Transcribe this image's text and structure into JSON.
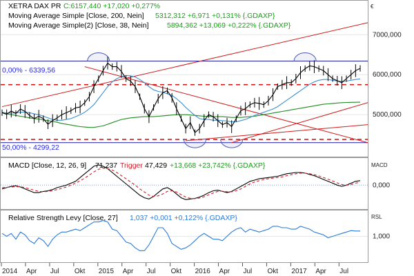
{
  "chart_data": {
    "type": "line",
    "x_axis": {
      "labels": [
        "2014",
        "Apr",
        "Jul",
        "Okt",
        "2015",
        "Apr",
        "Jul",
        "Okt",
        "2016",
        "Apr",
        "Jul",
        "Okt",
        "2017",
        "Apr",
        "Jul"
      ]
    },
    "price_panel": {
      "currency_symbol": "€",
      "legend": [
        {
          "name": "XETRA DAX PR",
          "values_text": "C:6157,440 +17,020 +0,277%",
          "color": "#1a9d1a"
        },
        {
          "name": "Moving Average Simple [Close, 200, Nein]",
          "values_text": "5312,312 +6,971 +0,131% {.GDAXP}",
          "color": "#1a9d1a"
        },
        {
          "name": "Moving Average Simple(2) [Close, 38, Nein]",
          "values_text": "5894,362 +13,069 +0,222% {.GDAXP}",
          "color": "#1a9d1a"
        }
      ],
      "y_ticks": [
        {
          "label": "7000,000",
          "value": 7000
        },
        {
          "label": "6000,000",
          "value": 6000
        },
        {
          "label": "5000,000",
          "value": 5000
        }
      ],
      "ylim": [
        3950,
        7850
      ],
      "fib_levels": [
        {
          "label": "0,00% - 6339,56",
          "value": 6339.56
        },
        {
          "label": "50,00% - 4299,22",
          "value": 4299.22
        }
      ],
      "support_resistance": [
        5750,
        4380
      ],
      "close": [
        5050,
        5010,
        5090,
        5030,
        5140,
        5080,
        4980,
        4900,
        4960,
        4900,
        4760,
        4850,
        4920,
        5000,
        5050,
        5100,
        5170,
        5190,
        5300,
        5450,
        5700,
        5900,
        6100,
        6290,
        6200,
        6200,
        6080,
        5900,
        5840,
        5700,
        5450,
        5150,
        4950,
        5180,
        5400,
        5550,
        5600,
        5420,
        5150,
        4900,
        4650,
        4800,
        4550,
        4650,
        4850,
        5000,
        4950,
        4850,
        4750,
        4800,
        4700,
        4900,
        5100,
        5150,
        5250,
        5300,
        5280,
        5250,
        5350,
        5500,
        5700,
        5750,
        5800,
        5800,
        5900,
        6050,
        6150,
        6220,
        6200,
        6150,
        6100,
        6000,
        5900,
        5850,
        5800,
        5900,
        6000,
        6100,
        6157.44
      ],
      "ma200": [
        5050,
        5020,
        5000,
        4980,
        4960,
        4940,
        4920,
        4900,
        4890,
        4870,
        4850,
        4830,
        4810,
        4780,
        4760,
        4740,
        4720,
        4700,
        4690,
        4680,
        4680,
        4700,
        4720,
        4760,
        4800,
        4840,
        4880,
        4900,
        4920,
        4930,
        4940,
        4950,
        4950,
        4950,
        4960,
        4970,
        4980,
        4990,
        5000,
        5000,
        5000,
        4990,
        4980,
        4970,
        4960,
        4960,
        4950,
        4950,
        4950,
        4940,
        4930,
        4930,
        4930,
        4940,
        4950,
        4960,
        4980,
        5000,
        5020,
        5040,
        5060,
        5080,
        5100,
        5120,
        5140,
        5160,
        5180,
        5200,
        5220,
        5240,
        5260,
        5270,
        5280,
        5290,
        5300,
        5305,
        5308,
        5310,
        5312.31
      ],
      "ma38": [
        5060,
        5040,
        5040,
        5040,
        5060,
        5060,
        5050,
        5020,
        5000,
        4960,
        4920,
        4880,
        4860,
        4860,
        4880,
        4900,
        4950,
        5000,
        5060,
        5150,
        5250,
        5400,
        5550,
        5700,
        5820,
        5900,
        5950,
        5980,
        5970,
        5940,
        5880,
        5800,
        5700,
        5620,
        5580,
        5560,
        5520,
        5480,
        5400,
        5300,
        5180,
        5080,
        4980,
        4900,
        4880,
        4880,
        4860,
        4860,
        4850,
        4840,
        4820,
        4820,
        4850,
        4880,
        4930,
        4980,
        5020,
        5060,
        5100,
        5140,
        5200,
        5280,
        5360,
        5440,
        5520,
        5600,
        5680,
        5760,
        5820,
        5860,
        5880,
        5880,
        5860,
        5840,
        5830,
        5840,
        5860,
        5880,
        5894.36
      ]
    },
    "macd_panel": {
      "legend": [
        {
          "name": "MACD [Close, 12, 26, 9]",
          "values_text": "71,237",
          "color": "#000000"
        },
        {
          "name": "Trigger",
          "values_text": "47,429",
          "color": "#d0202a"
        },
        {
          "name": "",
          "values_text": "+13,668 +23,742% {.GDAXP}",
          "color": "#1a9d1a"
        }
      ],
      "title": "MACD",
      "y_ticks": [
        {
          "label": "0,000",
          "value": 0
        }
      ],
      "ylim": [
        -380,
        430
      ],
      "macd": [
        -60,
        -40,
        -20,
        -10,
        -30,
        -60,
        -90,
        -120,
        -120,
        -100,
        -90,
        -70,
        -40,
        -20,
        0,
        30,
        60,
        120,
        180,
        240,
        300,
        320,
        300,
        260,
        200,
        140,
        80,
        20,
        -40,
        -100,
        -160,
        -200,
        -220,
        -180,
        -120,
        -60,
        -40,
        -80,
        -140,
        -200,
        -230,
        -220,
        -210,
        -190,
        -160,
        -120,
        -90,
        -80,
        -100,
        -120,
        -100,
        -60,
        -20,
        20,
        60,
        80,
        100,
        110,
        120,
        130,
        140,
        160,
        180,
        190,
        200,
        200,
        190,
        170,
        150,
        120,
        90,
        60,
        30,
        0,
        -20,
        0,
        30,
        60,
        71.24
      ],
      "trigger": [
        -40,
        -35,
        -30,
        -25,
        -25,
        -40,
        -60,
        -80,
        -100,
        -105,
        -100,
        -90,
        -70,
        -50,
        -30,
        0,
        30,
        70,
        110,
        160,
        210,
        250,
        270,
        260,
        240,
        200,
        150,
        100,
        50,
        0,
        -60,
        -110,
        -160,
        -180,
        -170,
        -140,
        -100,
        -90,
        -110,
        -150,
        -190,
        -210,
        -215,
        -205,
        -185,
        -155,
        -125,
        -100,
        -95,
        -105,
        -105,
        -90,
        -60,
        -20,
        20,
        50,
        70,
        90,
        100,
        110,
        120,
        130,
        150,
        165,
        180,
        190,
        190,
        180,
        165,
        145,
        120,
        95,
        65,
        35,
        10,
        0,
        10,
        30,
        47.43
      ]
    },
    "rsl_panel": {
      "legend": [
        {
          "name": "Relative Strength Levy [Close, 27]",
          "values_text": "1,037 +0,001 +0,122% {.GDAXP}",
          "color": "#2a7ad8"
        }
      ],
      "title": "RSL",
      "y_ticks": [
        {
          "label": "1,000",
          "value": 1.0
        }
      ],
      "ylim": [
        0.82,
        1.18
      ],
      "rsl": [
        1.02,
        1.0,
        1.02,
        0.98,
        1.03,
        1.01,
        0.97,
        0.95,
        0.99,
        0.97,
        0.93,
        0.98,
        1.01,
        1.03,
        1.03,
        1.04,
        1.05,
        1.04,
        1.06,
        1.08,
        1.1,
        1.1,
        1.11,
        1.1,
        1.05,
        1.04,
        1.0,
        0.96,
        0.95,
        0.92,
        0.9,
        0.9,
        0.94,
        1.0,
        1.06,
        1.06,
        1.02,
        0.95,
        0.93,
        0.91,
        0.92,
        0.94,
        0.97,
        1.0,
        1.02,
        1.0,
        0.98,
        0.98,
        0.97,
        1.0,
        1.03,
        1.05,
        1.06,
        1.03,
        1.05,
        1.04,
        1.03,
        1.04,
        1.05,
        1.07,
        1.07,
        1.06,
        1.06,
        1.05,
        1.05,
        1.07,
        1.06,
        1.05,
        1.03,
        1.02,
        1.01,
        0.99,
        1.0,
        1.01,
        1.02,
        1.03,
        1.04,
        1.037,
        1.037
      ]
    },
    "colors": {
      "price_line": "#000000",
      "ma200": "#1e8a1e",
      "ma38": "#3a8fd0",
      "trendline": "#d01a1a",
      "dashed_level": "#d01a1a",
      "fib_line": "#1a1aa0",
      "fib_text": "#2a2ae0",
      "macd": "#000000",
      "trigger": "#d0202a",
      "rsl": "#2a7ad8",
      "arc": "#4b5ab8"
    }
  }
}
